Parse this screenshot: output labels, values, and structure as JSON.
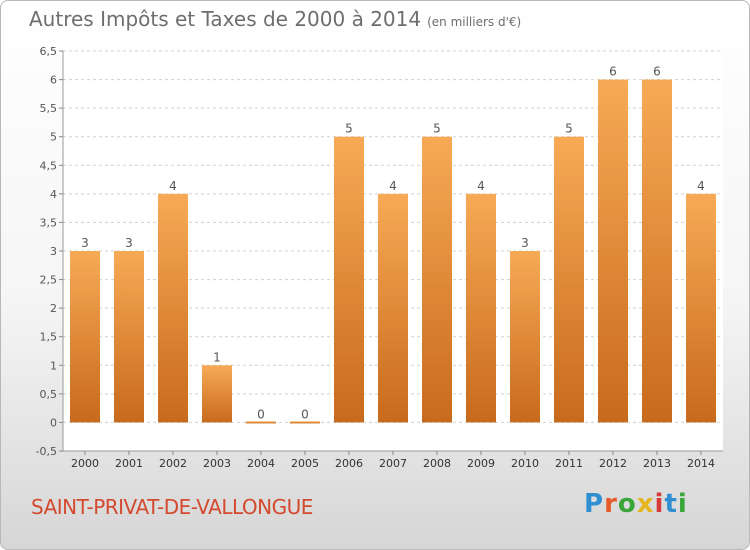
{
  "header": {
    "title": "Autres Impôts et Taxes de 2000 à 2014",
    "subtitle": "(en milliers d'€)"
  },
  "footer": {
    "commune": "SAINT-PRIVAT-DE-VALLONGUE",
    "logo_text": "Proxiti",
    "logo_colors": [
      "#2f8fd1",
      "#e65a2a",
      "#3aa63a",
      "#e6b61e",
      "#d63a3a",
      "#2f8fd1",
      "#3aa63a"
    ]
  },
  "chart_data": {
    "type": "bar",
    "categories": [
      "2000",
      "2001",
      "2002",
      "2003",
      "2004",
      "2005",
      "2006",
      "2007",
      "2008",
      "2009",
      "2010",
      "2011",
      "2012",
      "2013",
      "2014"
    ],
    "values": [
      3,
      3,
      4,
      1,
      0,
      0,
      5,
      4,
      5,
      4,
      3,
      5,
      6,
      6,
      4
    ],
    "data_labels": [
      "3",
      "3",
      "4",
      "1",
      "0",
      "0",
      "5",
      "4",
      "5",
      "4",
      "3",
      "5",
      "6",
      "6",
      "4"
    ],
    "ylim": [
      -0.5,
      6.5
    ],
    "yticks": [
      -0.5,
      0,
      0.5,
      1,
      1.5,
      2,
      2.5,
      3,
      3.5,
      4,
      4.5,
      5,
      5.5,
      6,
      6.5
    ],
    "ytick_labels": [
      "-0,5",
      "0",
      "0,5",
      "1",
      "1,5",
      "2",
      "2,5",
      "3",
      "3,5",
      "4",
      "4,5",
      "5",
      "5,5",
      "6",
      "6,5"
    ],
    "grid": true,
    "colors": {
      "bar_top": "#f7aa55",
      "bar_bottom": "#c86a1c",
      "grid": "#d0d0d0",
      "plot_bg": "#ffffff"
    }
  }
}
